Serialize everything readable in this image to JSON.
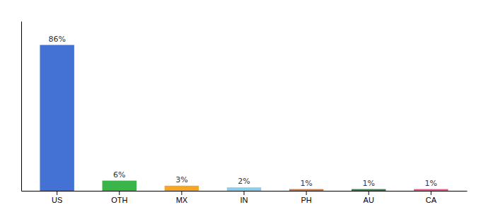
{
  "chart_data": {
    "type": "bar",
    "categories": [
      "US",
      "OTH",
      "MX",
      "IN",
      "PH",
      "AU",
      "CA"
    ],
    "values": [
      86,
      6,
      3,
      2,
      1,
      1,
      1
    ],
    "value_labels": [
      "86%",
      "6%",
      "3%",
      "2%",
      "1%",
      "1%",
      "1%"
    ],
    "colors": [
      "#4472d4",
      "#3ab54a",
      "#f5a623",
      "#87ceeb",
      "#c87941",
      "#3a7d44",
      "#e8538f"
    ],
    "ylim": [
      0,
      100
    ],
    "data_labels": true,
    "tick_labels": "x",
    "grid": false
  }
}
